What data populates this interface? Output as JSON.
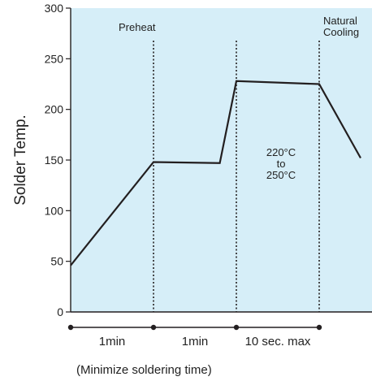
{
  "chart_data": {
    "type": "line",
    "ylabel": "Solder Temp.",
    "ylim": [
      0,
      300
    ],
    "yticks": [
      0,
      50,
      100,
      150,
      200,
      250,
      300
    ],
    "x_max": 4.8,
    "series": [
      {
        "points": [
          [
            0,
            46
          ],
          [
            1,
            148
          ],
          [
            1.8,
            147
          ],
          [
            2,
            228
          ],
          [
            3,
            225
          ],
          [
            3.5,
            152
          ]
        ]
      }
    ],
    "phase_boundaries": [
      1,
      2,
      3
    ],
    "annotations": {
      "preheat": "Preheat",
      "natural_cooling": [
        "Natural",
        "Cooling"
      ],
      "peak_range": [
        "220°C",
        "to",
        "250°C"
      ]
    },
    "time_segments": [
      {
        "label": "1min",
        "from": 0,
        "to": 1
      },
      {
        "label": "1min",
        "from": 1,
        "to": 2
      },
      {
        "label": "10 sec. max",
        "from": 2,
        "to": 3
      }
    ],
    "footnote": "(Minimize soldering time)",
    "colors": {
      "plot_background": "#d6eef8",
      "line": "#231f20",
      "axis": "#231f20"
    }
  }
}
